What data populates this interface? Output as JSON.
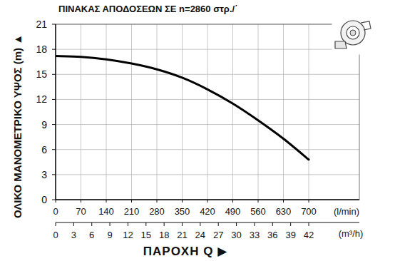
{
  "chart_data": {
    "type": "line",
    "title": "ΠΙΝΑΚΑΣ ΑΠΟΔΟΣΕΩΝ ΣΕ n=2860 στρ./΄",
    "y_label": "ΟΛΙΚΟ ΜΑΝΟΜΕΤΡΙΚΟ ΥΨΟΣ (m) ▲",
    "x_label": "(l/min)",
    "x2_label": "(m³/h)",
    "x_title": "ΠΑΡΟΧΗ Q ▶",
    "x": [
      0,
      70,
      140,
      210,
      280,
      350,
      420,
      490,
      560,
      630,
      700
    ],
    "values": [
      17.2,
      17.1,
      16.8,
      16.3,
      15.6,
      14.6,
      13.2,
      11.5,
      9.5,
      7.3,
      4.8
    ],
    "color": "#000000",
    "xlim": [
      0,
      840
    ],
    "xticks": [
      0,
      70,
      140,
      210,
      280,
      350,
      420,
      490,
      560,
      630,
      700
    ],
    "x2lim": [
      0,
      50.4
    ],
    "x2ticks": [
      0,
      3,
      6,
      9,
      12,
      15,
      18,
      21,
      24,
      27,
      30,
      33,
      36,
      39,
      42
    ],
    "ylim": [
      0,
      21
    ],
    "yticks": [
      0,
      3,
      6,
      9,
      12,
      15,
      18,
      21
    ],
    "grid": true
  }
}
